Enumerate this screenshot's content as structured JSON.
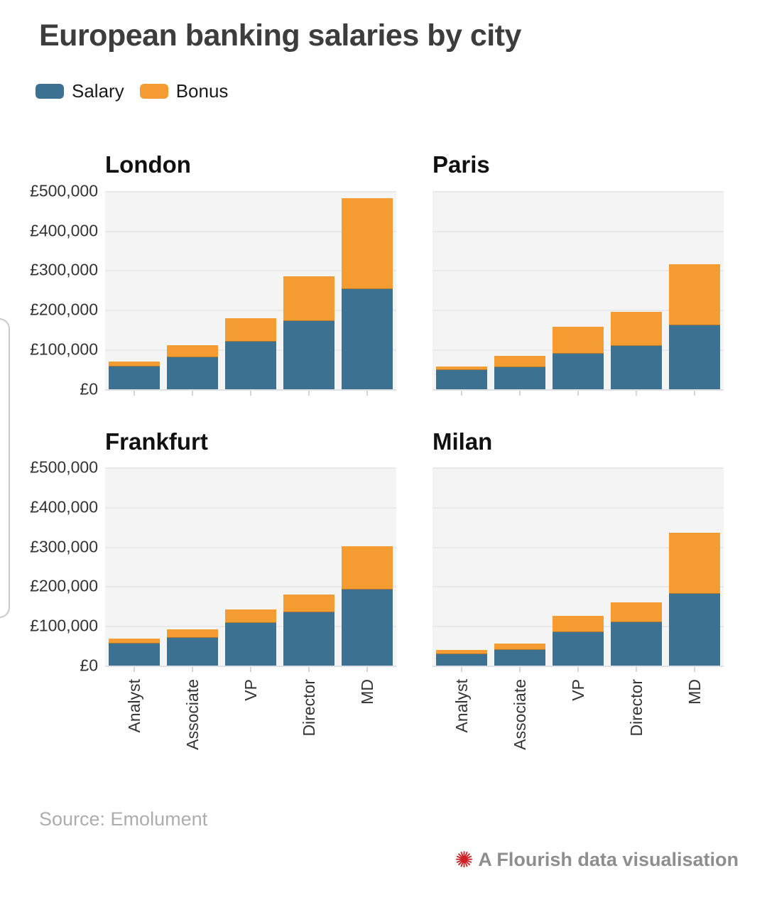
{
  "header": {
    "title": "European banking salaries by city"
  },
  "legend": [
    {
      "label": "Salary",
      "color": "#3d7191"
    },
    {
      "label": "Bonus",
      "color": "#f49b31"
    }
  ],
  "colors": {
    "salary": "#3d7191",
    "bonus": "#f49b31",
    "plot_background": "#f4f4f4",
    "gridline": "#e9e9e9",
    "title_text": "#3d3d3d",
    "axis_text": "#333333",
    "source_text": "#adadad",
    "attribution_text": "#8e8e8e",
    "attribution_icon": "#cd2026"
  },
  "footer": {
    "source": "Source: Emolument",
    "attribution": "A Flourish data visualisation",
    "attribution_icon_glyph": "✺"
  },
  "chart_data": {
    "type": "bar",
    "stacked": true,
    "grid": true,
    "legend_position": "top-left",
    "ylabel": "",
    "xlabel": "",
    "ylim": [
      0,
      500000
    ],
    "y_ticks": [
      "£500,000",
      "£400,000",
      "£300,000",
      "£200,000",
      "£100,000",
      "£0"
    ],
    "categories": [
      "Analyst",
      "Associate",
      "VP",
      "Director",
      "MD"
    ],
    "panels": [
      {
        "title": "London",
        "series": [
          {
            "name": "Salary",
            "values": [
              57000,
              80000,
              119000,
              171000,
              252000
            ]
          },
          {
            "name": "Bonus",
            "values": [
              11000,
              29000,
              58000,
              111000,
              228000
            ]
          }
        ]
      },
      {
        "title": "Paris",
        "series": [
          {
            "name": "Salary",
            "values": [
              48000,
              56000,
              90000,
              108000,
              160000
            ]
          },
          {
            "name": "Bonus",
            "values": [
              8000,
              26000,
              65000,
              85000,
              153000
            ]
          }
        ]
      },
      {
        "title": "Frankfurt",
        "series": [
          {
            "name": "Salary",
            "values": [
              55000,
              70000,
              108000,
              135000,
              192000
            ]
          },
          {
            "name": "Bonus",
            "values": [
              11000,
              20000,
              32000,
              42000,
              108000
            ]
          }
        ]
      },
      {
        "title": "Milan",
        "series": [
          {
            "name": "Salary",
            "values": [
              29000,
              40000,
              84000,
              110000,
              181000
            ]
          },
          {
            "name": "Bonus",
            "values": [
              8000,
              13000,
              39000,
              48000,
              152000
            ]
          }
        ]
      }
    ]
  }
}
